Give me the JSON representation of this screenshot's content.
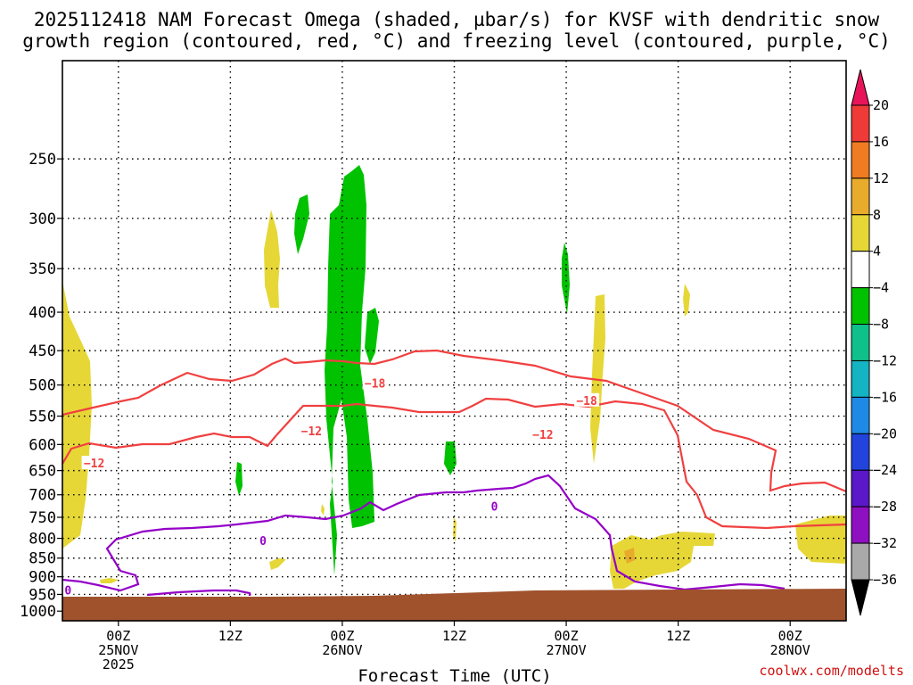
{
  "chart_data": {
    "type": "time-height cross-section",
    "title_line1": "2025112418 NAM Forecast Omega (shaded, µbar/s) for KVSF with dendritic snow",
    "title_line2": "growth region (contoured, red, °C) and freezing level (contoured, purple, °C)",
    "xlabel": "Forecast Time (UTC)",
    "credit": "coolwx.com/modelts",
    "x_range_hours": [
      -6,
      78
    ],
    "y_scale": "log-pressure (inverted)",
    "y_range_hpa": [
      1030,
      185
    ],
    "y_ticks": [
      250,
      300,
      350,
      400,
      450,
      500,
      550,
      600,
      650,
      700,
      750,
      800,
      850,
      900,
      950,
      1000
    ],
    "x_ticks": [
      {
        "hour": 0,
        "lines": [
          "00Z",
          "25NOV",
          "2025"
        ]
      },
      {
        "hour": 12,
        "lines": [
          "12Z"
        ]
      },
      {
        "hour": 24,
        "lines": [
          "00Z",
          "26NOV"
        ]
      },
      {
        "hour": 36,
        "lines": [
          "12Z"
        ]
      },
      {
        "hour": 48,
        "lines": [
          "00Z",
          "27NOV"
        ]
      },
      {
        "hour": 60,
        "lines": [
          "12Z"
        ]
      },
      {
        "hour": 72,
        "lines": [
          "00Z",
          "28NOV"
        ]
      }
    ],
    "grid": "dotted",
    "colorbar": {
      "position": "right",
      "labels": [
        "20",
        "16",
        "12",
        "8",
        "4",
        "−4",
        "−8",
        "−12",
        "−16",
        "−20",
        "−24",
        "−28",
        "−32",
        "−36"
      ],
      "colors": [
        "#e8145a",
        "#ee3b37",
        "#f07c22",
        "#e8ab2c",
        "#e6d737",
        "#ffffff",
        "#00c200",
        "#10c08a",
        "#14b4c2",
        "#1f8ae6",
        "#2244dd",
        "#5a18c8",
        "#8e10c0",
        "#a9a9a9",
        "#000000"
      ]
    },
    "ground_color": "#a0522d",
    "contour_colors": {
      "dgz": "#f04040",
      "freezing": "#9400c8"
    },
    "contour_labels": [
      {
        "text": "−18",
        "hour": 27.5,
        "p": 497
      },
      {
        "text": "−18",
        "hour": 50.2,
        "p": 524
      },
      {
        "text": "−12",
        "hour": 20.7,
        "p": 575
      },
      {
        "text": "−12",
        "hour": 45.5,
        "p": 582
      },
      {
        "text": "−12",
        "hour": -2.6,
        "p": 635
      },
      {
        "text": "0",
        "hour": 15.5,
        "p": 805
      },
      {
        "text": "0",
        "hour": 40.3,
        "p": 725
      },
      {
        "text": "0",
        "hour": -5.4,
        "p": 937
      }
    ]
  }
}
